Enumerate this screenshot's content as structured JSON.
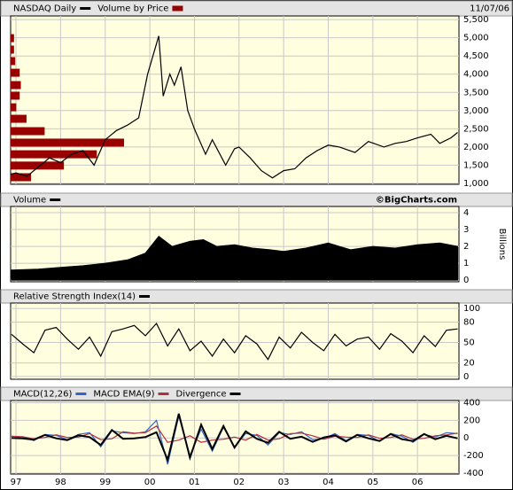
{
  "chart_data": [
    {
      "type": "line",
      "date": "11/07/06",
      "xlim": [
        1996.88,
        2006.93
      ],
      "ylim": [
        975,
        5600
      ],
      "yticks": [
        {
          "value": 1000,
          "label": "1,000"
        },
        {
          "value": 1500,
          "label": "1,500"
        },
        {
          "value": 2000,
          "label": "2,000"
        },
        {
          "value": 2500,
          "label": "2,500"
        },
        {
          "value": 3000,
          "label": "3,000"
        },
        {
          "value": 3500,
          "label": "3,500"
        },
        {
          "value": 4000,
          "label": "4,000"
        },
        {
          "value": 4500,
          "label": "4,500"
        },
        {
          "value": 5000,
          "label": "5,000"
        },
        {
          "value": 5500,
          "label": "5,500"
        }
      ],
      "grid": true,
      "series": [
        {
          "name": "NASDAQ Daily",
          "color": "#000000",
          "x": [
            1996.88,
            1997.0,
            1997.25,
            1997.5,
            1997.75,
            1998.0,
            1998.25,
            1998.5,
            1998.75,
            1999.0,
            1999.25,
            1999.5,
            1999.75,
            1999.95,
            2000.2,
            2000.3,
            2000.45,
            2000.55,
            2000.7,
            2000.85,
            2001.0,
            2001.25,
            2001.4,
            2001.7,
            2001.9,
            2002.0,
            2002.25,
            2002.5,
            2002.75,
            2003.0,
            2003.25,
            2003.5,
            2003.75,
            2004.0,
            2004.25,
            2004.6,
            2004.9,
            2005.25,
            2005.5,
            2005.75,
            2006.0,
            2006.3,
            2006.5,
            2006.75,
            2006.9
          ],
          "values": [
            1250,
            1290,
            1200,
            1450,
            1700,
            1570,
            1800,
            1900,
            1500,
            2200,
            2450,
            2600,
            2800,
            4000,
            5050,
            3400,
            4000,
            3700,
            4200,
            3000,
            2500,
            1800,
            2200,
            1500,
            1950,
            2000,
            1700,
            1350,
            1150,
            1350,
            1400,
            1700,
            1900,
            2050,
            2000,
            1850,
            2150,
            2000,
            2100,
            2150,
            2250,
            2350,
            2100,
            2250,
            2400
          ]
        }
      ],
      "volume_by_price": {
        "name": "Volume by Price",
        "color": "#990000",
        "levels": [
          4990,
          4675,
          4360,
          4040,
          3700,
          3410,
          3090,
          2775,
          2435,
          2120,
          1800,
          1490,
          1170
        ],
        "values": [
          3,
          3,
          4,
          8,
          9,
          8,
          5,
          14,
          30,
          100,
          76,
          47,
          18
        ]
      }
    },
    {
      "type": "area",
      "watermark": "©BigCharts.com",
      "y_label": "Billions",
      "xlim": [
        1996.88,
        2006.93
      ],
      "ylim": [
        -0.1,
        4.37
      ],
      "yticks": [
        0,
        1,
        2,
        3,
        4
      ],
      "grid": true,
      "series": [
        {
          "name": "Volume",
          "color": "#000000",
          "x": [
            1996.9,
            1997.5,
            1998.0,
            1998.5,
            1999.0,
            1999.5,
            1999.9,
            2000.2,
            2000.5,
            2000.9,
            2001.2,
            2001.5,
            2001.9,
            2002.3,
            2002.7,
            2003.0,
            2003.5,
            2004.0,
            2004.5,
            2005.0,
            2005.5,
            2006.0,
            2006.5,
            2006.9
          ],
          "values": [
            0.6,
            0.65,
            0.75,
            0.85,
            1.0,
            1.2,
            1.6,
            2.6,
            2.0,
            2.3,
            2.4,
            2.0,
            2.1,
            1.9,
            1.8,
            1.7,
            1.9,
            2.2,
            1.8,
            2.0,
            1.9,
            2.1,
            2.2,
            2.0
          ]
        }
      ]
    },
    {
      "type": "line",
      "xlim": [
        1996.88,
        2006.93
      ],
      "ylim": [
        -4,
        108
      ],
      "yticks": [
        0,
        20,
        50,
        80,
        100
      ],
      "grid": true,
      "series": [
        {
          "name": "Relative Strength Index(14)",
          "color": "#000000",
          "x": [
            1996.9,
            1997.15,
            1997.4,
            1997.65,
            1997.9,
            1998.15,
            1998.4,
            1998.65,
            1998.9,
            1999.15,
            1999.4,
            1999.65,
            1999.9,
            2000.15,
            2000.4,
            2000.65,
            2000.9,
            2001.15,
            2001.4,
            2001.65,
            2001.9,
            2002.15,
            2002.4,
            2002.65,
            2002.9,
            2003.15,
            2003.4,
            2003.65,
            2003.9,
            2004.15,
            2004.4,
            2004.65,
            2004.9,
            2005.15,
            2005.4,
            2005.65,
            2005.9,
            2006.15,
            2006.4,
            2006.65,
            2006.9
          ],
          "values": [
            62,
            48,
            35,
            68,
            72,
            55,
            40,
            58,
            30,
            66,
            70,
            75,
            60,
            78,
            45,
            70,
            38,
            52,
            30,
            55,
            35,
            60,
            48,
            25,
            58,
            42,
            65,
            50,
            38,
            62,
            45,
            55,
            58,
            40,
            63,
            52,
            35,
            60,
            44,
            68,
            70
          ]
        }
      ]
    },
    {
      "type": "line",
      "xlim": [
        1996.88,
        2006.93
      ],
      "ylim": [
        -410,
        425
      ],
      "yticks": [
        -400,
        -200,
        0,
        200,
        400
      ],
      "grid": true,
      "xticks": [
        {
          "value": 1997,
          "label": "97"
        },
        {
          "value": 1998,
          "label": "98"
        },
        {
          "value": 1999,
          "label": "99"
        },
        {
          "value": 2000,
          "label": "00"
        },
        {
          "value": 2001,
          "label": "01"
        },
        {
          "value": 2002,
          "label": "02"
        },
        {
          "value": 2003,
          "label": "03"
        },
        {
          "value": 2004,
          "label": "04"
        },
        {
          "value": 2005,
          "label": "05"
        },
        {
          "value": 2006,
          "label": "06"
        }
      ],
      "x": [
        1996.9,
        1997.15,
        1997.4,
        1997.65,
        1997.9,
        1998.15,
        1998.4,
        1998.65,
        1998.9,
        1999.15,
        1999.4,
        1999.65,
        1999.9,
        2000.15,
        2000.4,
        2000.65,
        2000.9,
        2001.15,
        2001.4,
        2001.65,
        2001.9,
        2002.15,
        2002.4,
        2002.65,
        2002.9,
        2003.15,
        2003.4,
        2003.65,
        2003.9,
        2004.15,
        2004.4,
        2004.65,
        2004.9,
        2005.15,
        2005.4,
        2005.65,
        2005.9,
        2006.15,
        2006.4,
        2006.65,
        2006.9
      ],
      "series": [
        {
          "name": "MACD(12,26)",
          "color": "#3366cc",
          "values": [
            20,
            10,
            -30,
            40,
            30,
            -20,
            40,
            60,
            -100,
            80,
            60,
            50,
            70,
            200,
            -300,
            250,
            -200,
            100,
            -150,
            120,
            -100,
            50,
            30,
            -80,
            60,
            40,
            70,
            -20,
            -10,
            50,
            -30,
            40,
            30,
            -40,
            50,
            20,
            -50,
            40,
            10,
            60,
            50
          ]
        },
        {
          "name": "MACD EMA(9)",
          "color": "#b03040",
          "values": [
            20,
            15,
            -10,
            5,
            35,
            5,
            10,
            50,
            -20,
            -10,
            70,
            55,
            60,
            135,
            -50,
            -25,
            25,
            -50,
            -25,
            -15,
            10,
            -25,
            40,
            -25,
            -10,
            50,
            55,
            25,
            -15,
            20,
            10,
            5,
            35,
            -5,
            5,
            35,
            -15,
            -5,
            25,
            35,
            55
          ]
        },
        {
          "name": "Divergence",
          "color": "#000000",
          "values": [
            0,
            -5,
            -20,
            35,
            -5,
            -25,
            30,
            10,
            -80,
            90,
            -10,
            -5,
            10,
            65,
            -250,
            275,
            -225,
            150,
            -125,
            135,
            -110,
            75,
            -10,
            -55,
            70,
            -10,
            15,
            -45,
            5,
            30,
            -40,
            35,
            -5,
            -35,
            45,
            -15,
            -35,
            45,
            -15,
            25,
            -5
          ]
        }
      ]
    }
  ]
}
